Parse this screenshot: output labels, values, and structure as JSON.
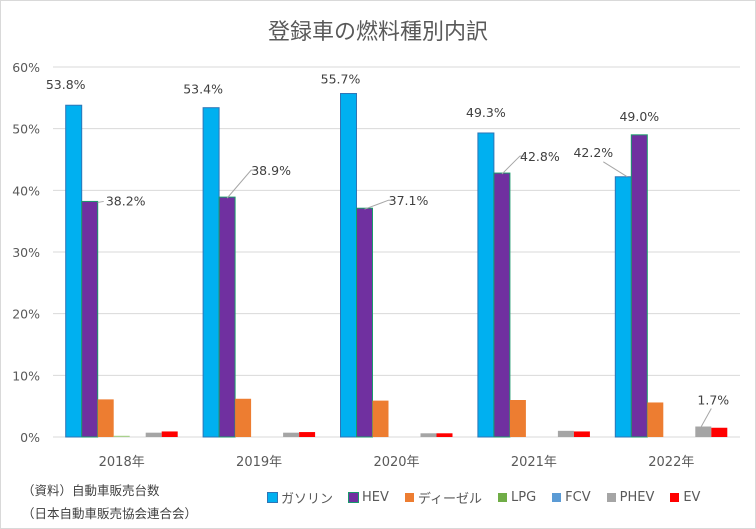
{
  "chart_data": {
    "type": "bar",
    "title": "登録車の燃料種別内訳",
    "xlabel": "",
    "ylabel": "",
    "ylim": [
      0,
      60
    ],
    "yticks": [
      "0%",
      "10%",
      "20%",
      "30%",
      "40%",
      "50%",
      "60%"
    ],
    "grid": true,
    "legend_position": "bottom-right",
    "categories": [
      "2018年",
      "2019年",
      "2020年",
      "2021年",
      "2022年"
    ],
    "series": [
      {
        "name": "ガソリン",
        "color": "#00B0F0",
        "values": [
          53.8,
          53.4,
          55.7,
          49.3,
          42.2
        ]
      },
      {
        "name": "HEV",
        "color": "#7030A0",
        "values": [
          38.2,
          38.9,
          37.1,
          42.8,
          49.0
        ]
      },
      {
        "name": "ディーゼル",
        "color": "#ED7D31",
        "values": [
          6.1,
          6.2,
          5.9,
          6.0,
          5.6
        ]
      },
      {
        "name": "LPG",
        "color": "#70AD47",
        "values": [
          0.2,
          0.0,
          0.0,
          0.0,
          0.0
        ]
      },
      {
        "name": "FCV",
        "color": "#5B9BD5",
        "values": [
          0.0,
          0.0,
          0.0,
          0.0,
          0.0
        ]
      },
      {
        "name": "PHEV",
        "color": "#A5A5A5",
        "values": [
          0.7,
          0.7,
          0.6,
          1.0,
          1.7
        ]
      },
      {
        "name": "EV",
        "color": "#FF0000",
        "values": [
          0.9,
          0.8,
          0.6,
          0.9,
          1.5
        ]
      }
    ],
    "data_labels": [
      {
        "series": 0,
        "category": 0,
        "text": "53.8%"
      },
      {
        "series": 1,
        "category": 0,
        "text": "38.2%"
      },
      {
        "series": 0,
        "category": 1,
        "text": "53.4%"
      },
      {
        "series": 1,
        "category": 1,
        "text": "38.9%"
      },
      {
        "series": 0,
        "category": 2,
        "text": "55.7%"
      },
      {
        "series": 1,
        "category": 2,
        "text": "37.1%"
      },
      {
        "series": 0,
        "category": 3,
        "text": "49.3%"
      },
      {
        "series": 1,
        "category": 3,
        "text": "42.8%"
      },
      {
        "series": 0,
        "category": 4,
        "text": "42.2%"
      },
      {
        "series": 1,
        "category": 4,
        "text": "49.0%"
      },
      {
        "series": 5,
        "category": 4,
        "text": "1.7%"
      }
    ]
  },
  "source_note": {
    "line1": "（資料）自動車販売台数",
    "line2": "（日本自動車販売協会連合会）"
  }
}
